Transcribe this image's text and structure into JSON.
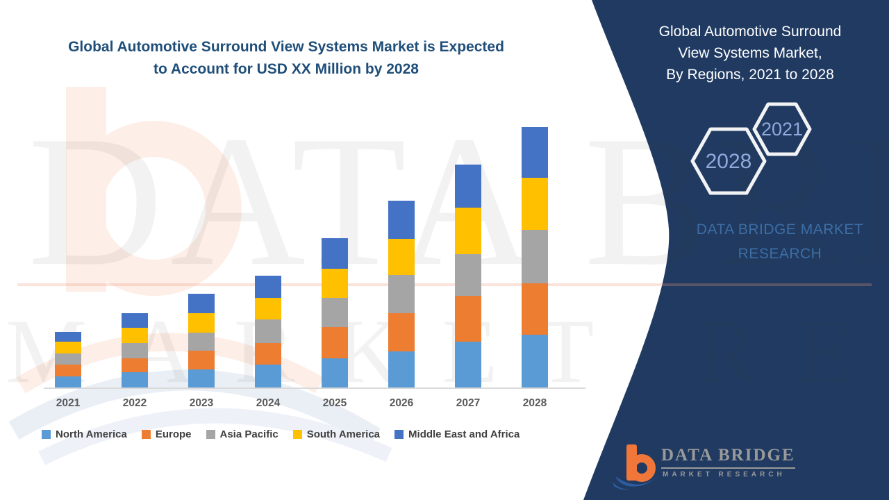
{
  "header": {
    "title_line1": "Global Automotive Surround View Systems Market is Expected",
    "title_line2": "to Account for USD XX Million by 2028",
    "color": "#1f4e79"
  },
  "panel": {
    "bg_color": "#203a61",
    "title_line1": "Global Automotive Surround",
    "title_line2": "View Systems Market,",
    "title_line3": "By Regions,  2021 to 2028",
    "hex_small_label": "2021",
    "hex_large_label": "2028",
    "hex_text_color": "#8faadc",
    "brand_line1": "DATA BRIDGE MARKET",
    "brand_line2": "RESEARCH",
    "brand_text_color": "#3d6ea5"
  },
  "watermark": {
    "line1": "DATA BRIDGE",
    "line2": "MARKET RESEARCH"
  },
  "logo": {
    "wordmark": "DATA BRIDGE",
    "subtext": "MARKET RESEARCH",
    "b_color": "#f0763a",
    "swoosh_color": "#2d5b9e",
    "text_color": "#9a9a9a"
  },
  "chart_data": {
    "type": "bar",
    "stacked": true,
    "title": "Global Automotive Surround View Systems Market is Expected to Account for USD XX Million by 2028",
    "xlabel": "",
    "ylabel": "",
    "units": "USD Million (values shown as XX placeholder; no value axis displayed)",
    "grid": false,
    "legend_position": "bottom",
    "categories": [
      "2021",
      "2022",
      "2023",
      "2024",
      "2025",
      "2026",
      "2027",
      "2028"
    ],
    "series": [
      {
        "name": "North America",
        "color": "#5B9BD5",
        "values": [
          16,
          22,
          26,
          33,
          42,
          52,
          66,
          76
        ]
      },
      {
        "name": "Europe",
        "color": "#ED7D31",
        "values": [
          17,
          20,
          27,
          31,
          45,
          55,
          66,
          74
        ]
      },
      {
        "name": "Asia Pacific",
        "color": "#A5A5A5",
        "values": [
          16,
          22,
          26,
          34,
          42,
          55,
          60,
          77
        ]
      },
      {
        "name": "South America",
        "color": "#FFC000",
        "values": [
          17,
          22,
          28,
          31,
          42,
          52,
          67,
          75
        ]
      },
      {
        "name": "Middle East and Africa",
        "color": "#4472C4",
        "values": [
          14,
          21,
          28,
          32,
          44,
          55,
          62,
          73
        ]
      }
    ],
    "totals": [
      80,
      107,
      135,
      161,
      215,
      269,
      321,
      375
    ],
    "axis_color": "#d9d9d9",
    "tick_color": "#595959"
  }
}
